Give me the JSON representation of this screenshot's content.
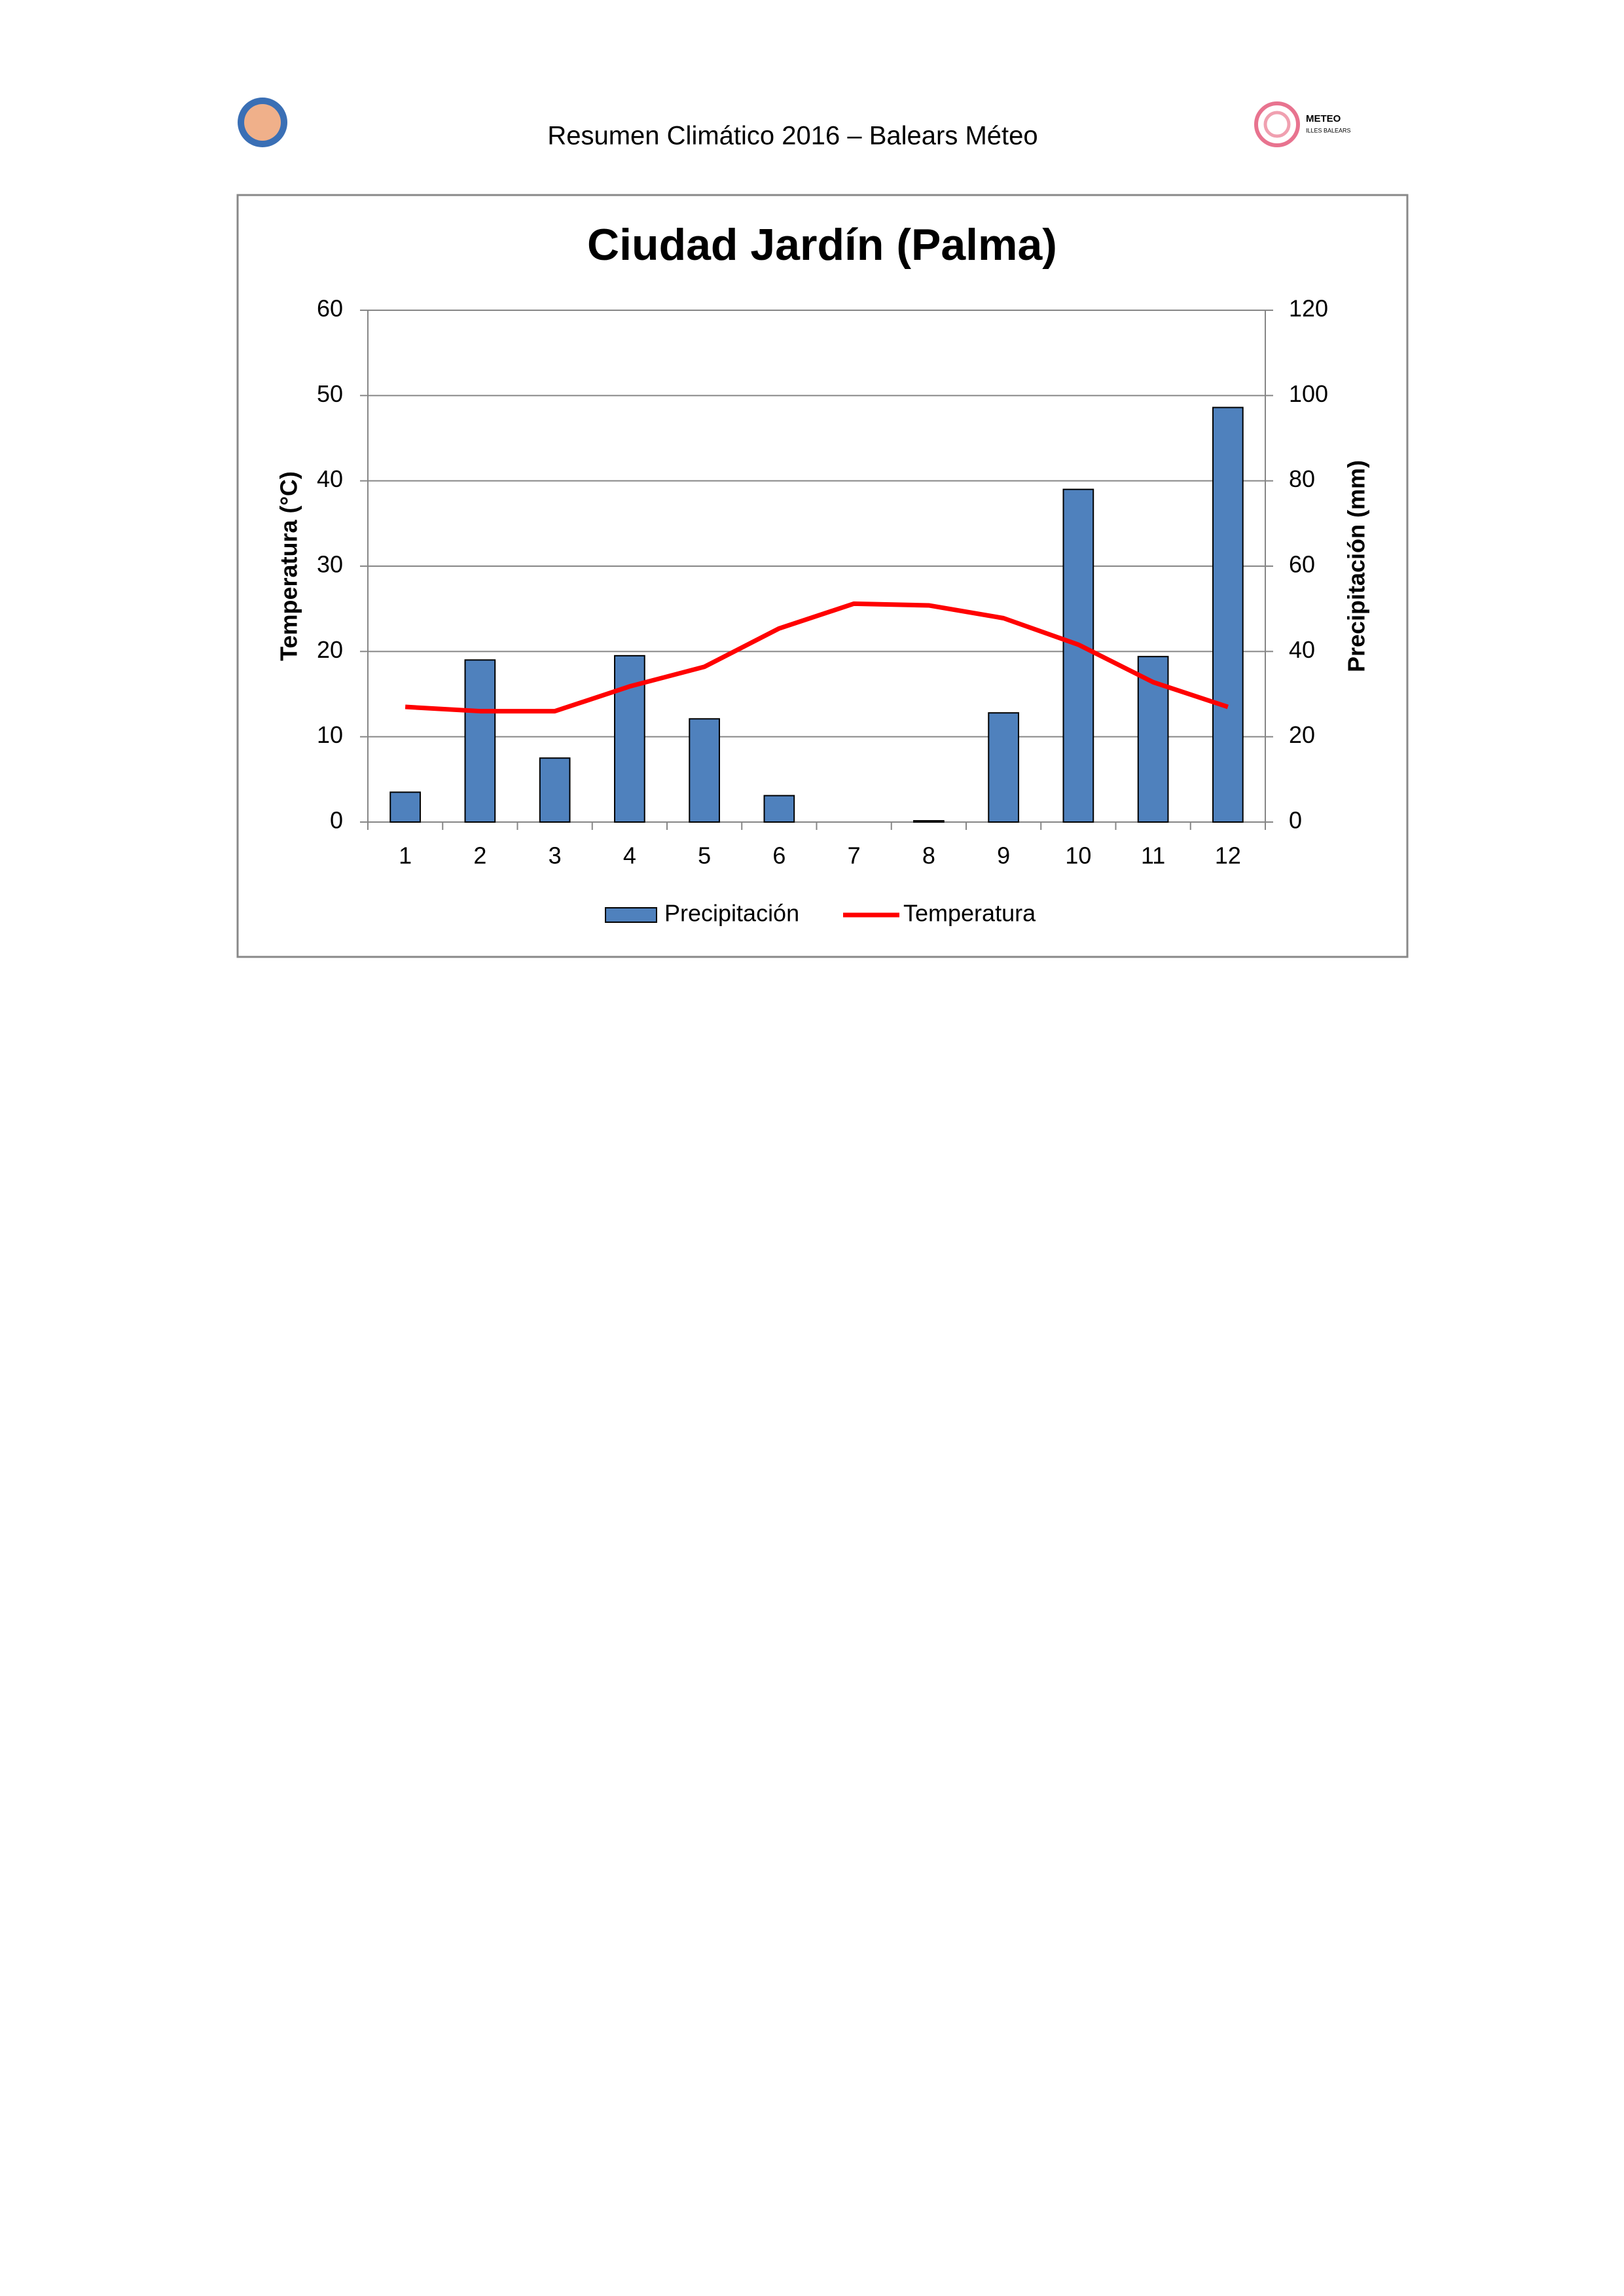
{
  "header": {
    "title": "Resumen Climático 2016 – Balears Méteo",
    "logo_title": "METEO",
    "logo_subtitle": "ILLES BALEARS"
  },
  "chart_data": {
    "type": "bar",
    "title": "Ciudad Jardín (Palma)",
    "y_label": "Temperatura (°C)",
    "y2_label": "Precipitación (mm)",
    "categories": [
      1,
      2,
      3,
      4,
      5,
      6,
      7,
      8,
      9,
      10,
      11,
      12
    ],
    "series": [
      {
        "name": "Precipitación",
        "type": "bar",
        "axis": "y2",
        "color": "#4f81bd",
        "values": [
          7,
          38,
          15,
          39,
          24.2,
          6.2,
          0,
          0.3,
          25.6,
          78,
          38.8,
          97.2
        ]
      },
      {
        "name": "Temperatura",
        "type": "line",
        "color": "#ff0000",
        "values": [
          13.5,
          13.0,
          13.0,
          15.9,
          18.2,
          22.7,
          25.6,
          25.4,
          23.9,
          20.8,
          16.4,
          13.5
        ]
      }
    ],
    "ylim": [
      0,
      60
    ],
    "yticks": [
      0,
      10,
      20,
      30,
      40,
      50,
      60
    ],
    "y2lim": [
      0,
      120
    ],
    "y2ticks": [
      0,
      20,
      40,
      60,
      80,
      100,
      120
    ],
    "grid": true,
    "legend": "bottom"
  }
}
